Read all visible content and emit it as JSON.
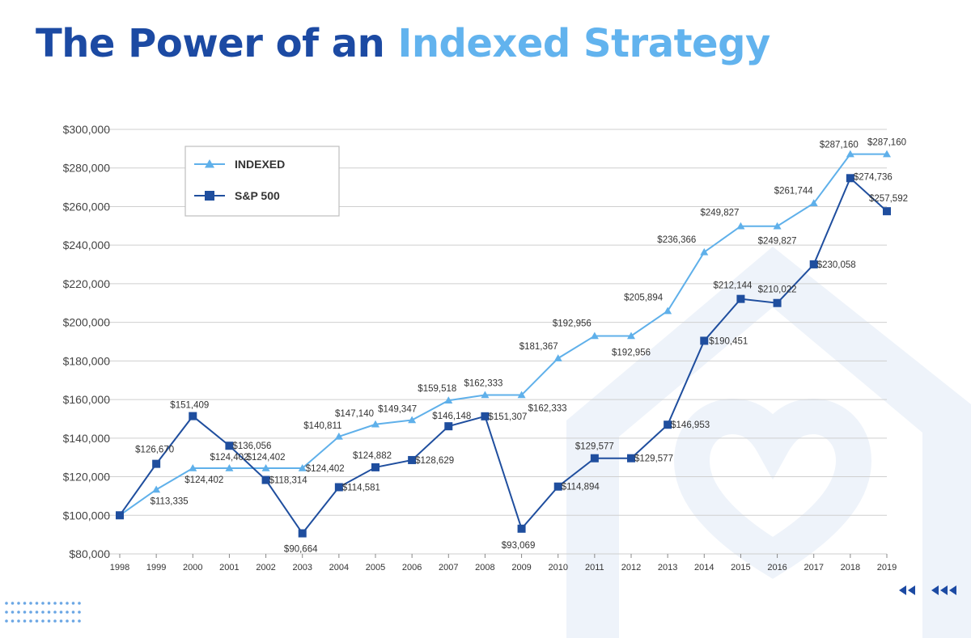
{
  "title_part1": "The Power of an",
  "title_part2": "Indexed Strategy",
  "colors": {
    "title_dark": "#1c4aa3",
    "title_light": "#62b3ee",
    "indexed_series": "#5fb0ea",
    "sp500_series": "#1f4e9e",
    "background_watermark": "#eef3fa"
  },
  "decorative_icons": [
    "dot-grid-icon",
    "double-chevron-left-icon",
    "triple-chevron-left-icon",
    "house-heart-watermark-icon"
  ],
  "chart_data": {
    "type": "line",
    "categories": [
      "1998",
      "1999",
      "2000",
      "2001",
      "2002",
      "2003",
      "2004",
      "2005",
      "2006",
      "2007",
      "2008",
      "2009",
      "2010",
      "2011",
      "2012",
      "2013",
      "2014",
      "2015",
      "2016",
      "2017",
      "2018",
      "2019"
    ],
    "ylim": [
      80000,
      300000
    ],
    "yticks": [
      "$80,000",
      "$100,000",
      "$120,000",
      "$140,000",
      "$160,000",
      "$180,000",
      "$200,000",
      "$220,000",
      "$240,000",
      "$260,000",
      "$280,000",
      "$300,000"
    ],
    "grid": true,
    "legend_position": "top-left",
    "series": [
      {
        "name": "INDEXED",
        "marker": "triangle",
        "values": [
          100000,
          113335,
          124402,
          124402,
          124402,
          124402,
          140811,
          147140,
          149347,
          159518,
          162333,
          162333,
          181367,
          192956,
          192956,
          205894,
          236366,
          249827,
          249827,
          261744,
          287160,
          287160
        ],
        "labels": [
          "",
          "$113,335",
          "$124,402",
          "$124,402",
          "$124,402",
          "$124,402",
          "$140,811",
          "$147,140",
          "$149,347",
          "$159,518",
          "$162,333",
          "$162,333",
          "$181,367",
          "$192,956",
          "$192,956",
          "$205,894",
          "$236,366",
          "$249,827",
          "$249,827",
          "$261,744",
          "$287,160",
          "$287,160"
        ]
      },
      {
        "name": "S&P 500",
        "marker": "square",
        "values": [
          100000,
          126670,
          151409,
          136056,
          118314,
          90664,
          114581,
          124882,
          128629,
          146148,
          151307,
          93069,
          114894,
          129577,
          129577,
          146953,
          190451,
          212144,
          210022,
          230058,
          274736,
          257592
        ],
        "labels": [
          "",
          "$126,670",
          "$151,409",
          "$136,056",
          "$118,314",
          "$90,664",
          "$114,581",
          "$124,882",
          "$128,629",
          "$146,148",
          "$151,307",
          "$93,069",
          "$114,894",
          "$129,577",
          "$129,577",
          "$146,953",
          "$190,451",
          "$212,144",
          "$210,022",
          "$230,058",
          "$274,736",
          "$257,592"
        ]
      }
    ]
  }
}
